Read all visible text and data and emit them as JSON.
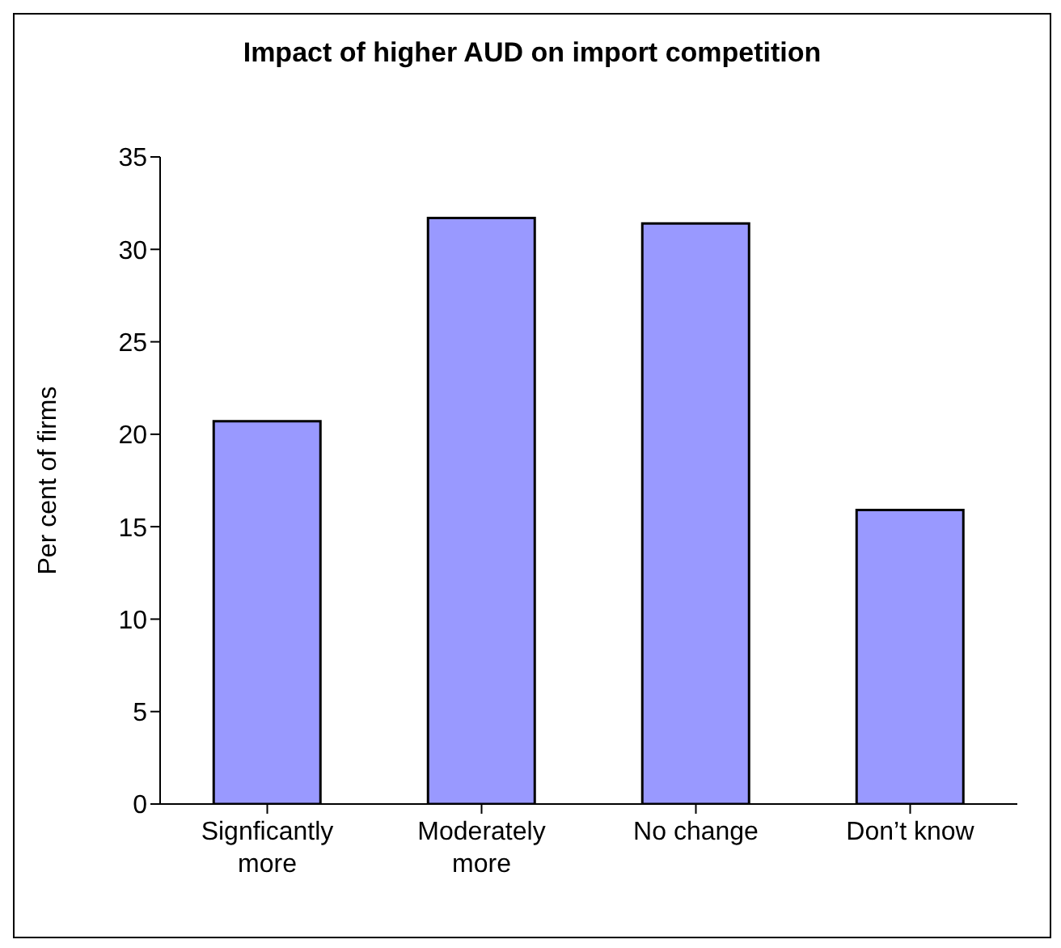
{
  "chart_data": {
    "type": "bar",
    "title": "Impact of higher AUD on import competition",
    "ylabel": "Per cent of firms",
    "categories": [
      "Signficantly more",
      "Moderately more",
      "No change",
      "Don’t know"
    ],
    "values": [
      20.7,
      31.7,
      31.4,
      15.9
    ],
    "color": "#9999ff",
    "ylim": [
      0,
      35
    ],
    "yticks": [
      0,
      5,
      10,
      15,
      20,
      25,
      30,
      35
    ],
    "grid": false
  }
}
